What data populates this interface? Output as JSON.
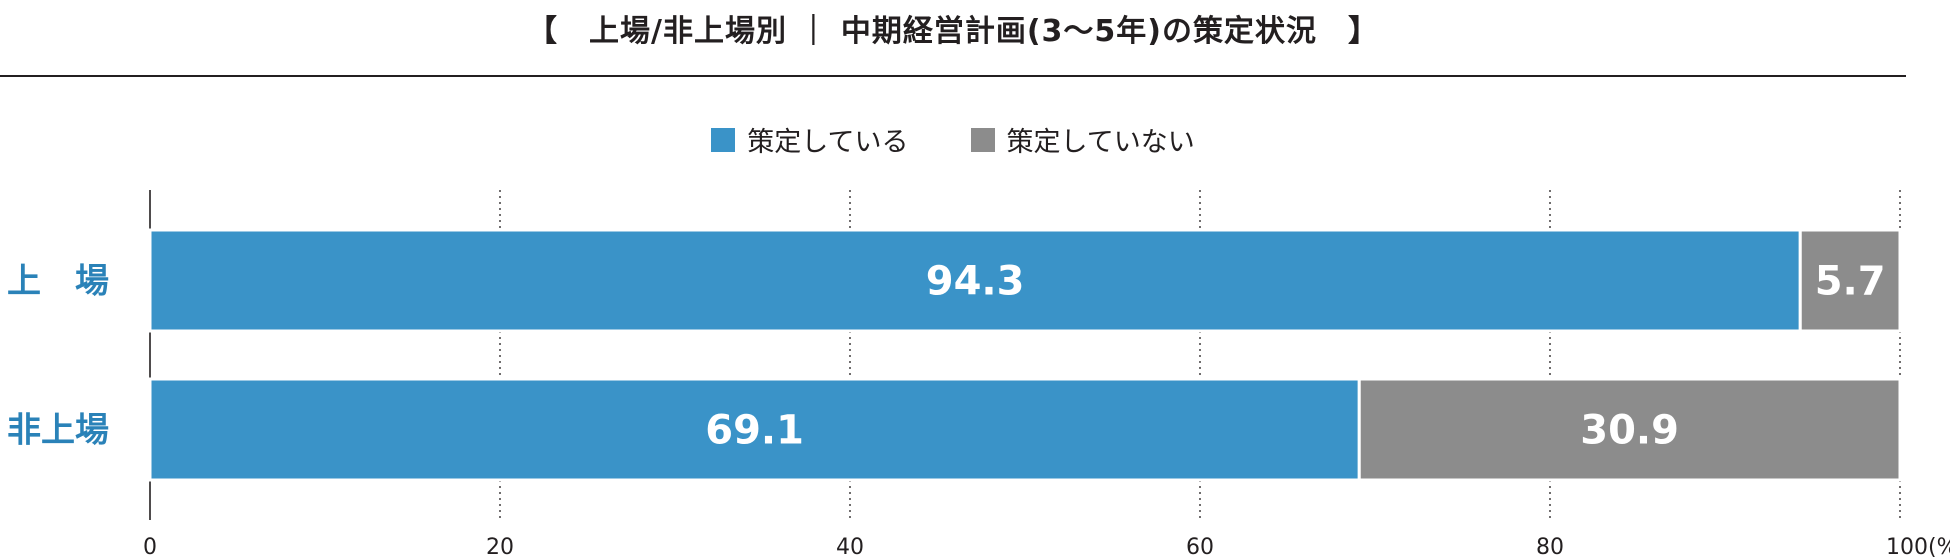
{
  "chart_data": {
    "type": "bar",
    "orientation": "horizontal",
    "stacked": true,
    "title": "【　上場/非上場別 ｜ 中期経営計画(3〜5年)の策定状況　】",
    "categories": [
      "上　場",
      "非上場"
    ],
    "series": [
      {
        "name": "策定している",
        "values": [
          94.3,
          69.1
        ],
        "color": "#3a93c8"
      },
      {
        "name": "策定していない",
        "values": [
          5.7,
          30.9
        ],
        "color": "#8c8c8c"
      }
    ],
    "value_labels": [
      [
        "94.3",
        "69.1"
      ],
      [
        "5.7",
        "30.9"
      ]
    ],
    "xlim": [
      0,
      100
    ],
    "x_ticks": [
      "0",
      "20",
      "40",
      "60",
      "80",
      "100(%)"
    ],
    "x_tick_values": [
      0,
      20,
      40,
      60,
      80,
      100
    ],
    "grid": "dotted vertical",
    "legend_position": "top-center",
    "category_label_color": "#2a82b8"
  }
}
